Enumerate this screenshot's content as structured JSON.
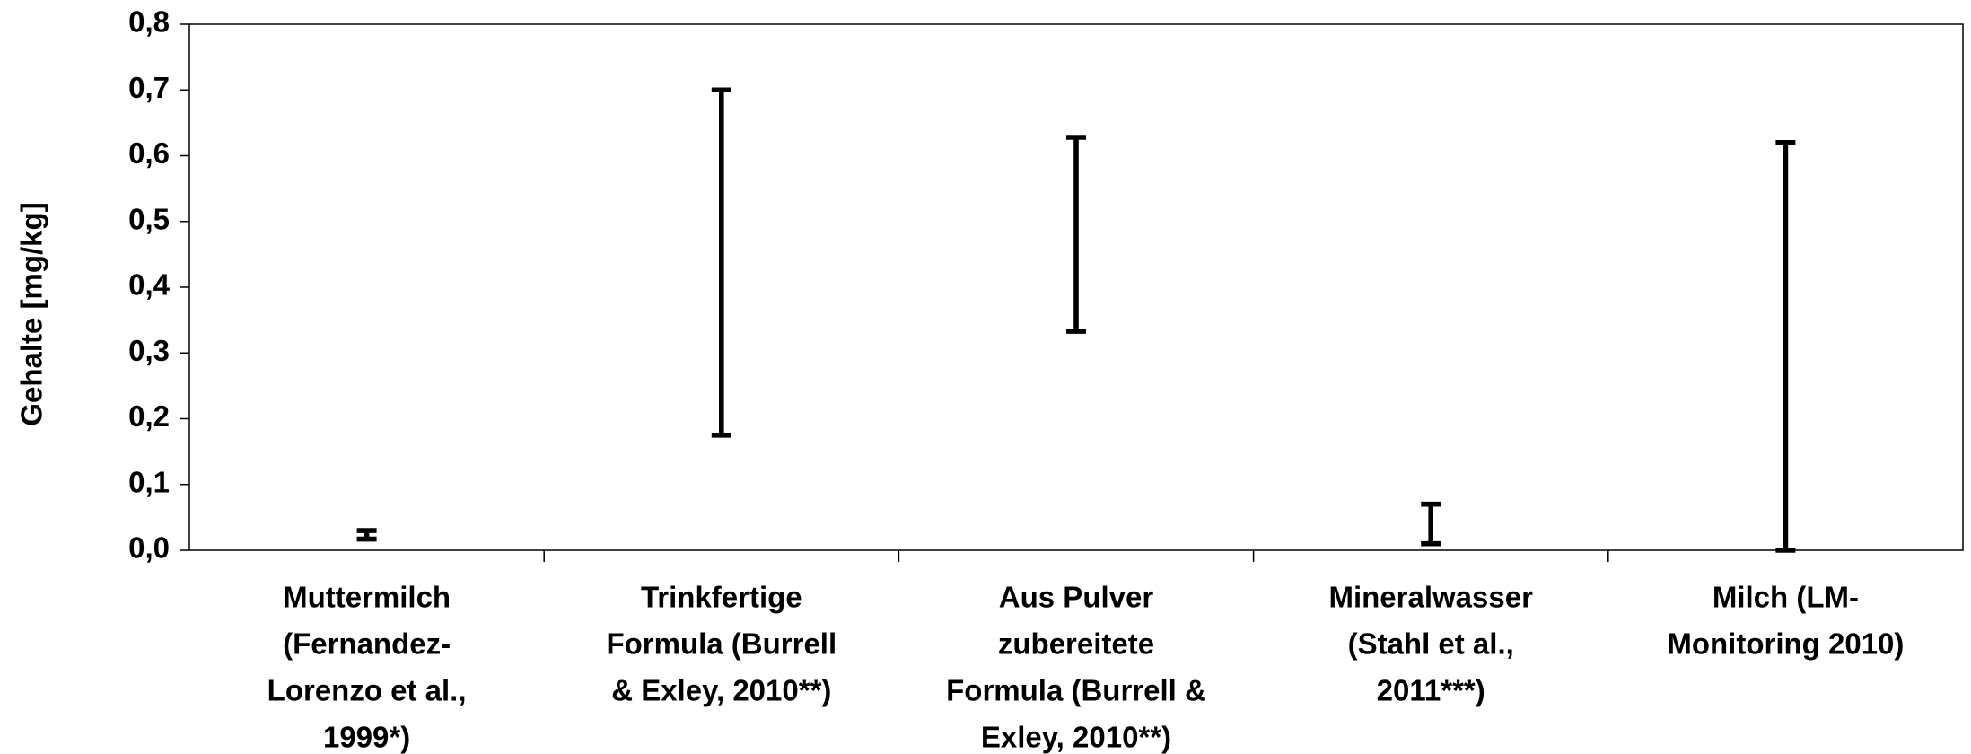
{
  "chart_data": {
    "type": "range",
    "y_label": "Gehalte [mg/kg]",
    "categories": [
      [
        "Muttermilch",
        "(Fernandez-",
        "Lorenzo et al.,",
        "1999*)"
      ],
      [
        "Trinkfertige",
        "Formula (Burrell",
        "& Exley, 2010**)"
      ],
      [
        "Aus Pulver",
        "zubereitete",
        "Formula (Burrell &",
        "Exley, 2010**)"
      ],
      [
        "Mineralwasser",
        "(Stahl et al.,",
        "2011***)"
      ],
      [
        "Milch (LM-",
        "Monitoring 2010)"
      ]
    ],
    "low": [
      0.017,
      0.175,
      0.333,
      0.01,
      0.0
    ],
    "high": [
      0.03,
      0.7,
      0.628,
      0.07,
      0.62
    ],
    "color": "#000000",
    "ylim": [
      0,
      0.8
    ],
    "yticks": [
      {
        "value": 0,
        "label": "0,0"
      },
      {
        "value": 0.1,
        "label": "0,1"
      },
      {
        "value": 0.2,
        "label": "0,2"
      },
      {
        "value": 0.3,
        "label": "0,3"
      },
      {
        "value": 0.4,
        "label": "0,4"
      },
      {
        "value": 0.5,
        "label": "0,5"
      },
      {
        "value": 0.6,
        "label": "0,6"
      },
      {
        "value": 0.7,
        "label": "0,7"
      },
      {
        "value": 0.8,
        "label": "0,8"
      }
    ]
  }
}
